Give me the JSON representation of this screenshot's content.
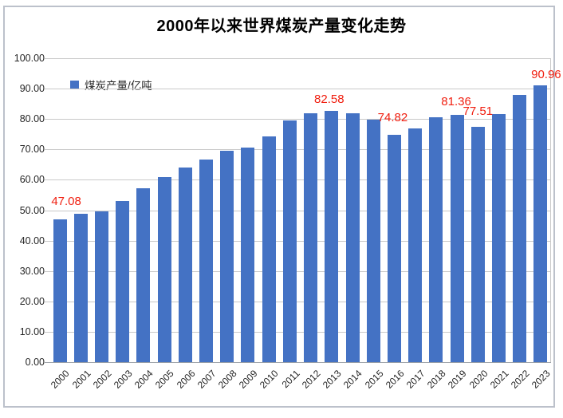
{
  "title": "2000年以来世界煤炭产量变化走势",
  "legend": {
    "label": "煤炭产量/亿吨",
    "swatch_color": "#4472C4"
  },
  "colors": {
    "bar": "#4472C4",
    "data_label": "#F01E0F",
    "grid": "#C9C9C9",
    "axis": "#9BA0A6",
    "frame_border": "#BCC1CB",
    "text": "#262626",
    "title_text": "#000000",
    "background": "#FFFFFF"
  },
  "chart_data": {
    "type": "bar",
    "title": "2000年以来世界煤炭产量变化走势",
    "legend": [
      "煤炭产量/亿吨"
    ],
    "legend_position": "inside-top-left",
    "grid": true,
    "ylim": [
      0,
      100
    ],
    "ytick_step": 10,
    "ytick_labels": [
      "0.00",
      "10.00",
      "20.00",
      "30.00",
      "40.00",
      "50.00",
      "60.00",
      "70.00",
      "80.00",
      "90.00",
      "100.00"
    ],
    "xlabel": "",
    "ylabel": "",
    "categories": [
      "2000",
      "2001",
      "2002",
      "2003",
      "2004",
      "2005",
      "2006",
      "2007",
      "2008",
      "2009",
      "2010",
      "2011",
      "2012",
      "2013",
      "2014",
      "2015",
      "2016",
      "2017",
      "2018",
      "2019",
      "2020",
      "2021",
      "2022",
      "2023"
    ],
    "values": [
      47.08,
      48.9,
      49.6,
      53.1,
      57.2,
      60.9,
      64.1,
      66.6,
      69.5,
      70.5,
      74.4,
      79.6,
      81.9,
      82.58,
      82.0,
      79.8,
      74.82,
      77.0,
      80.7,
      81.36,
      77.51,
      81.7,
      88.0,
      90.96
    ],
    "data_labels": [
      {
        "category": "2000",
        "text": "47.08"
      },
      {
        "category": "2013",
        "text": "82.58"
      },
      {
        "category": "2016",
        "text": "74.82"
      },
      {
        "category": "2019",
        "text": "81.36"
      },
      {
        "category": "2020",
        "text": "77.51"
      },
      {
        "category": "2023",
        "text": "90.96"
      }
    ]
  }
}
